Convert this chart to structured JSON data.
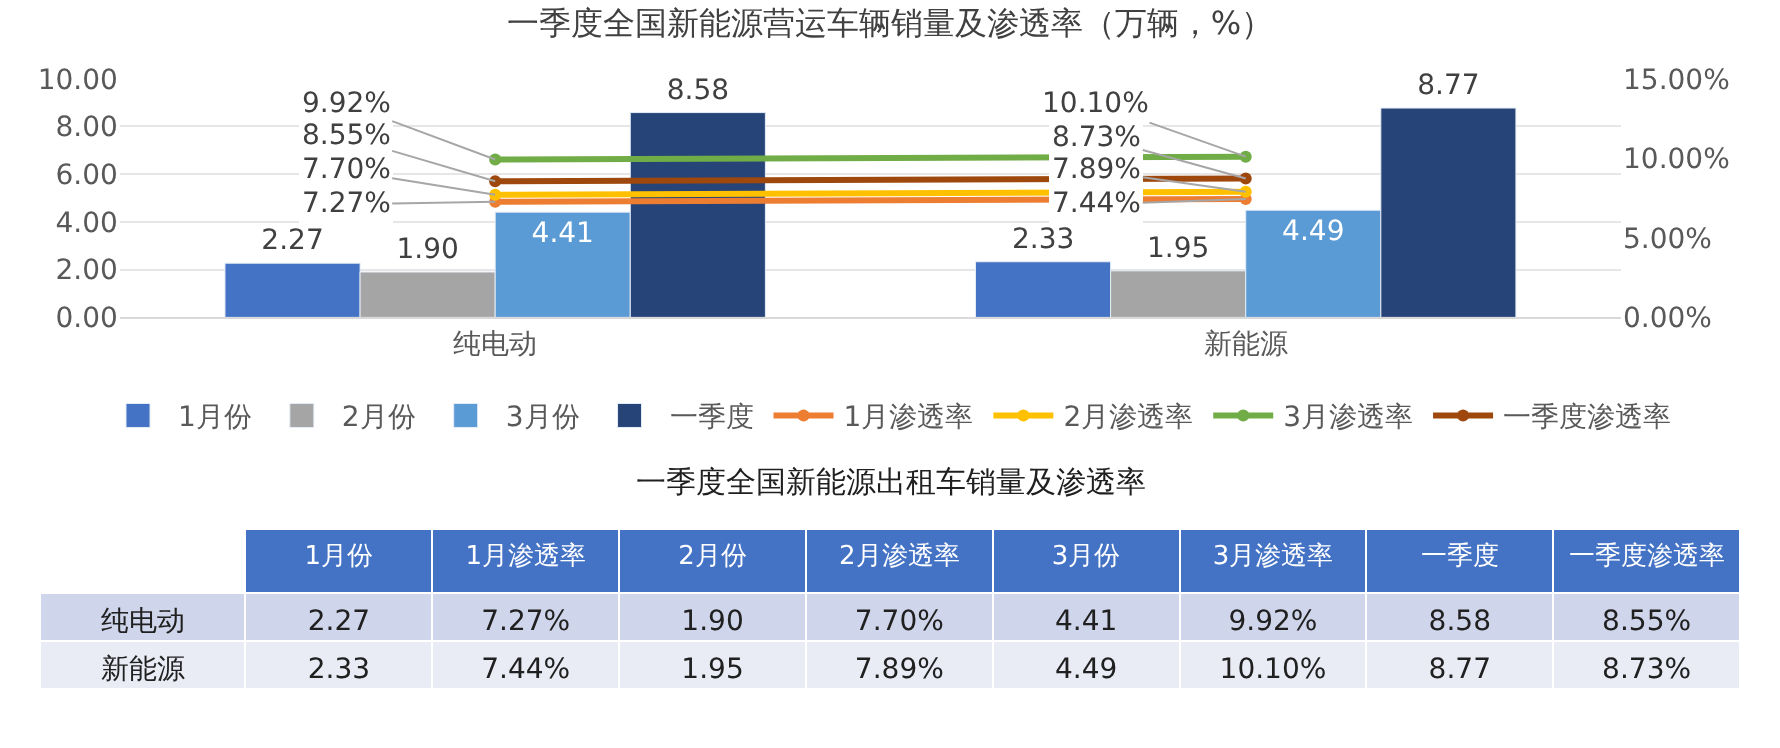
{
  "chart_data": {
    "type": "bar",
    "title": "一季度全国新能源营运车辆销量及渗透率（万辆，%）",
    "categories": [
      "纯电动",
      "新能源"
    ],
    "series": [
      {
        "name": "1月份",
        "color": "#4472c4",
        "values": [
          2.27,
          2.33
        ],
        "value_labels": [
          "2.27",
          "2.33"
        ]
      },
      {
        "name": "2月份",
        "color": "#a5a5a5",
        "values": [
          1.9,
          1.95
        ],
        "value_labels": [
          "1.90",
          "1.95"
        ]
      },
      {
        "name": "3月份",
        "color": "#5b9bd5",
        "values": [
          4.41,
          4.49
        ],
        "value_labels": [
          "4.41",
          "4.49"
        ]
      },
      {
        "name": "一季度",
        "color": "#264478",
        "values": [
          8.58,
          8.77
        ],
        "value_labels": [
          "8.58",
          "8.77"
        ]
      },
      {
        "name": "1月渗透率",
        "type": "line",
        "axis": "y2",
        "color": "#ed7d31",
        "values": [
          7.27,
          7.44
        ],
        "value_labels": [
          "7.27%",
          "7.44%"
        ]
      },
      {
        "name": "2月渗透率",
        "type": "line",
        "axis": "y2",
        "color": "#ffc000",
        "values": [
          7.7,
          7.89
        ],
        "value_labels": [
          "7.70%",
          "7.89%"
        ]
      },
      {
        "name": "3月渗透率",
        "type": "line",
        "axis": "y2",
        "color": "#70ad47",
        "values": [
          9.92,
          10.1
        ],
        "value_labels": [
          "9.92%",
          "10.10%"
        ]
      },
      {
        "name": "一季度渗透率",
        "type": "line",
        "axis": "y2",
        "color": "#9e480e",
        "values": [
          8.55,
          8.73
        ],
        "value_labels": [
          "8.55%",
          "8.73%"
        ]
      }
    ],
    "ylim": [
      0,
      10
    ],
    "yticks": [
      {
        "value": 0,
        "label": "0.00"
      },
      {
        "value": 2,
        "label": "2.00"
      },
      {
        "value": 4,
        "label": "4.00"
      },
      {
        "value": 6,
        "label": "6.00"
      },
      {
        "value": 8,
        "label": "8.00"
      },
      {
        "value": 10,
        "label": "10.00"
      }
    ],
    "y2lim": [
      0,
      15
    ],
    "y2ticks": [
      {
        "value": 0,
        "label": "0.00%"
      },
      {
        "value": 5,
        "label": "5.00%"
      },
      {
        "value": 10,
        "label": "10.00%"
      },
      {
        "value": 15,
        "label": "15.00%"
      }
    ],
    "grid": "y",
    "legend": "bottom",
    "marker": "circle",
    "annotations": [
      "一季度全国新能源出租车销量及渗透率"
    ]
  }
}
